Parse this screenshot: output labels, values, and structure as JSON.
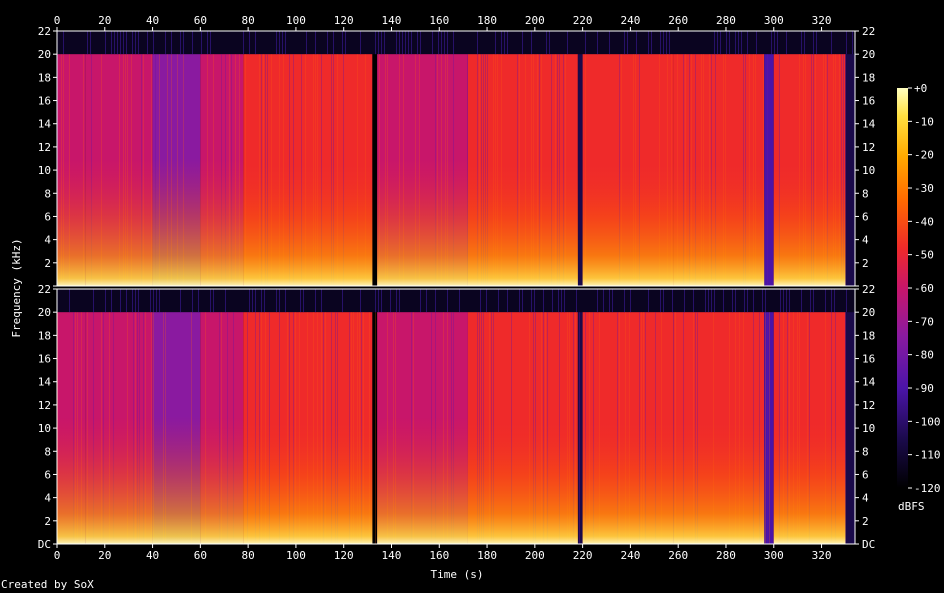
{
  "chart_data": {
    "type": "heatmap",
    "xlabel": "Time (s)",
    "ylabel": "Frequency (kHz)",
    "x_ticks": [
      0,
      20,
      40,
      60,
      80,
      100,
      120,
      140,
      160,
      180,
      200,
      220,
      240,
      260,
      280,
      300,
      320
    ],
    "xlim": [
      0,
      334
    ],
    "ylim": [
      0,
      22
    ],
    "y_tick_values": [
      0,
      2,
      4,
      6,
      8,
      10,
      12,
      14,
      16,
      18,
      20,
      22
    ],
    "y_tick_labels_top": [
      "",
      "2",
      "4",
      "6",
      "8",
      "10",
      "12",
      "14",
      "16",
      "18",
      "20",
      "22"
    ],
    "y_tick_labels_bottom": [
      "DC",
      "2",
      "4",
      "6",
      "8",
      "10",
      "12",
      "14",
      "16",
      "18",
      "20",
      "22"
    ],
    "channels": 2,
    "colorbar": {
      "label": "dBFS",
      "ticks": [
        {
          "value": 0,
          "label": "+0"
        },
        {
          "value": -10,
          "label": "-10"
        },
        {
          "value": -20,
          "label": "-20"
        },
        {
          "value": -30,
          "label": "-30"
        },
        {
          "value": -40,
          "label": "-40"
        },
        {
          "value": -50,
          "label": "-50"
        },
        {
          "value": -60,
          "label": "-60"
        },
        {
          "value": -70,
          "label": "-70"
        },
        {
          "value": -80,
          "label": "-80"
        },
        {
          "value": -90,
          "label": "-90"
        },
        {
          "value": -100,
          "label": "-100"
        },
        {
          "value": -110,
          "label": "-110"
        },
        {
          "value": -120,
          "label": "-120"
        }
      ],
      "range": [
        -120,
        0
      ]
    },
    "cutoff_khz": 20,
    "segments": [
      {
        "start": 0,
        "end": 12,
        "level": -68
      },
      {
        "start": 12,
        "end": 40,
        "level": -70
      },
      {
        "start": 40,
        "end": 60,
        "level": -82
      },
      {
        "start": 60,
        "end": 78,
        "level": -62
      },
      {
        "start": 78,
        "end": 132,
        "level": -56
      },
      {
        "start": 132,
        "end": 134,
        "level": -115
      },
      {
        "start": 134,
        "end": 172,
        "level": -62
      },
      {
        "start": 172,
        "end": 218,
        "level": -58
      },
      {
        "start": 218,
        "end": 220,
        "level": -112
      },
      {
        "start": 220,
        "end": 258,
        "level": -56
      },
      {
        "start": 258,
        "end": 296,
        "level": -54
      },
      {
        "start": 296,
        "end": 300,
        "level": -100
      },
      {
        "start": 300,
        "end": 330,
        "level": -55
      },
      {
        "start": 330,
        "end": 334,
        "level": -110
      }
    ],
    "colors": {
      "background": "#000000",
      "axis": "#ffffff",
      "palette": [
        "#000000",
        "#1a0a4a",
        "#4b14a8",
        "#8a1aa0",
        "#c8166a",
        "#ef2a2a",
        "#ff6a00",
        "#ffaa00",
        "#ffe040",
        "#ffffc0"
      ]
    }
  },
  "credit": "Created by SoX"
}
